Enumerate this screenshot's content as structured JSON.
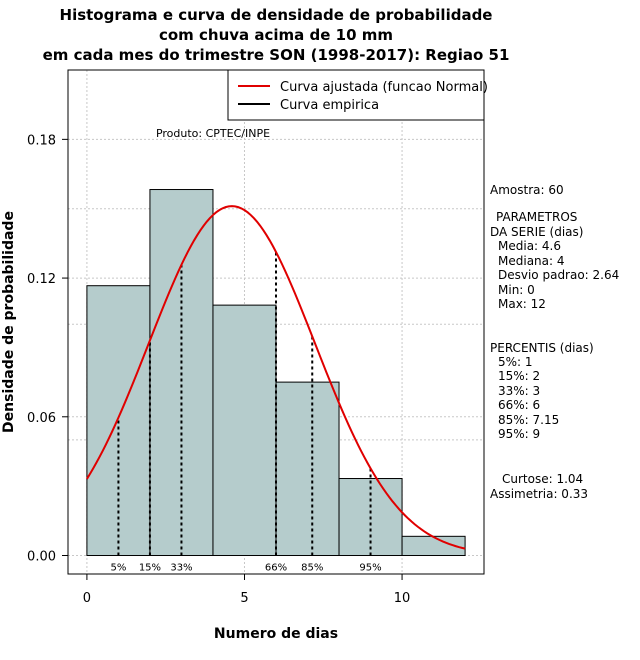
{
  "chart_data": {
    "type": "histogram",
    "title": [
      "Histograma e curva de densidade de probabilidade",
      "com chuva acima de 10 mm",
      "em cada mes do trimestre SON (1998-2017): Regiao 51"
    ],
    "xlabel": "Numero de dias",
    "ylabel": "Densidade de probabilidade",
    "xlim": [
      -0.6,
      12.6
    ],
    "ylim": [
      -0.008,
      0.21
    ],
    "xticks": [
      0,
      5,
      10
    ],
    "yticks": [
      0.0,
      0.06,
      0.12,
      0.18
    ],
    "ytick_labels": [
      "0.00",
      "0.06",
      "0.12",
      "0.18"
    ],
    "bins": [
      {
        "x0": 0,
        "x1": 2,
        "density": 0.1167
      },
      {
        "x0": 2,
        "x1": 4,
        "density": 0.1583
      },
      {
        "x0": 4,
        "x1": 6,
        "density": 0.1083
      },
      {
        "x0": 6,
        "x1": 8,
        "density": 0.075
      },
      {
        "x0": 8,
        "x1": 10,
        "density": 0.0333
      },
      {
        "x0": 10,
        "x1": 12,
        "density": 0.0083
      }
    ],
    "fitted_curve": {
      "name": "Curva ajustada (funcao Normal)",
      "distribution": "normal",
      "mean": 4.6,
      "sd": 2.64,
      "x_range": [
        0,
        12
      ],
      "color": "#e00000"
    },
    "empirical_curve": {
      "name": "Curva empirica",
      "color": "#000000"
    },
    "percentile_lines": [
      {
        "label": "5%",
        "x": 1
      },
      {
        "label": "15%",
        "x": 2
      },
      {
        "label": "33%",
        "x": 3
      },
      {
        "label": "66%",
        "x": 6
      },
      {
        "label": "85%",
        "x": 7.15
      },
      {
        "label": "95%",
        "x": 9
      }
    ],
    "grid_x": [
      0,
      5,
      10
    ],
    "grid_y": [
      0.0,
      0.06,
      0.12,
      0.18
    ],
    "extra_grid_y": [
      0.05,
      0.1,
      0.15
    ],
    "legend_position": "top-right",
    "bar_color": "#b5cccc",
    "annotation": "Produto: CPTEC/INPE"
  },
  "stats_panel": {
    "amostra": "Amostra: 60",
    "param_title_1": "PARAMETROS",
    "param_title_2": "DA SERIE (dias)",
    "media": "Media: 4.6",
    "mediana": "Mediana: 4",
    "desvio": "Desvio padrao: 2.64",
    "min": "Min: 0",
    "max": "Max: 12",
    "percentis_title": "PERCENTIS (dias)",
    "p5": "5%: 1",
    "p15": "15%: 2",
    "p33": "33%: 3",
    "p66": "66%: 6",
    "p85": "85%: 7.15",
    "p95": "95%: 9",
    "curtose": "Curtose: 1.04",
    "assimetria": "Assimetria: 0.33"
  }
}
